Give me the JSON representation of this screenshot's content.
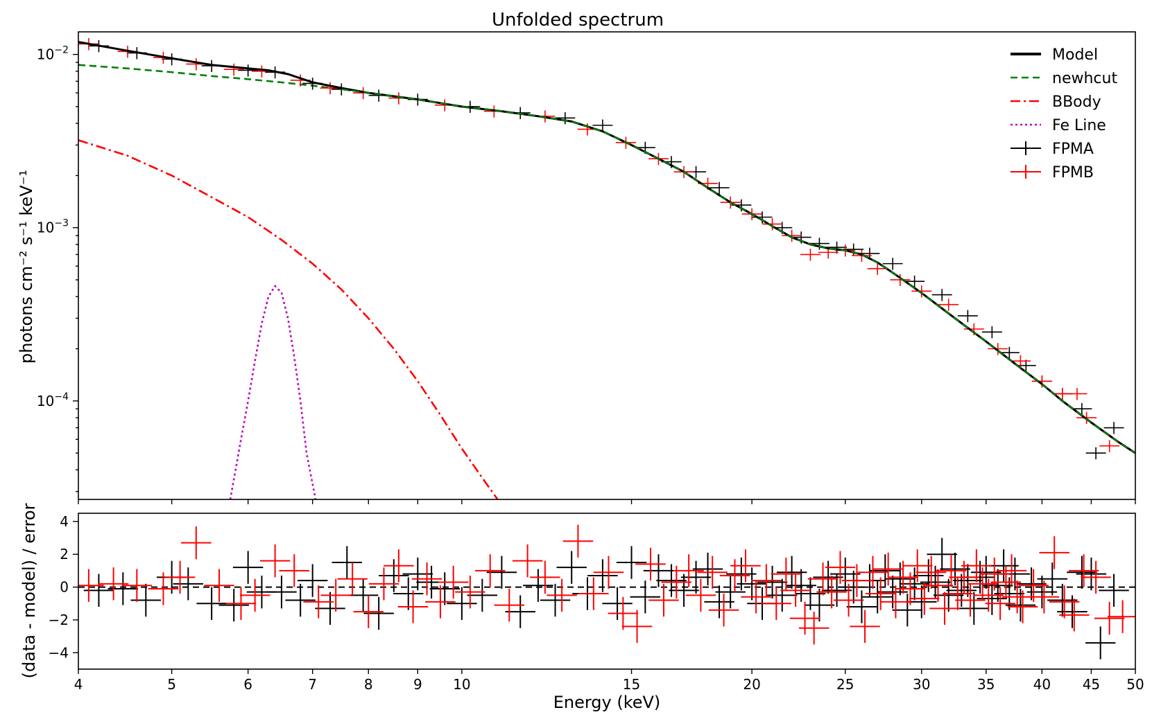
{
  "chart_data": [
    {
      "type": "line",
      "title": "Unfolded spectrum",
      "xlabel": "",
      "ylabel": "photons cm⁻² s⁻¹ keV⁻¹",
      "xscale": "log",
      "yscale": "log",
      "xlim": [
        4,
        50
      ],
      "ylim": [
        2.7e-05,
        0.0135
      ],
      "ytick_labels": [
        {
          "base": "10",
          "exp": "−2",
          "value": 0.01
        },
        {
          "base": "10",
          "exp": "−3",
          "value": 0.001
        },
        {
          "base": "10",
          "exp": "−4",
          "value": 0.0001
        }
      ],
      "legend": {
        "placement": "top-right",
        "entries": [
          {
            "label": "Model",
            "color": "#000000",
            "style": "solid"
          },
          {
            "label": "newhcut",
            "color": "#008000",
            "style": "dashed"
          },
          {
            "label": "BBody",
            "color": "#ff0000",
            "style": "dashdot"
          },
          {
            "label": "Fe Line",
            "color": "#bf00bf",
            "style": "dotted"
          },
          {
            "label": "FPMA",
            "color": "#000000",
            "style": "errorbar"
          },
          {
            "label": "FPMB",
            "color": "#ff0000",
            "style": "errorbar"
          }
        ]
      },
      "series": [
        {
          "name": "Model",
          "color": "#000000",
          "x": [
            4,
            4.5,
            5,
            5.5,
            6,
            6.3,
            6.6,
            7,
            7.5,
            8,
            9,
            10,
            11,
            12,
            13,
            14,
            15,
            16,
            17,
            18,
            19,
            20,
            21,
            22,
            23,
            24,
            25,
            26,
            27,
            28,
            30,
            32,
            35,
            38,
            40,
            42,
            45,
            48,
            50
          ],
          "y": [
            0.0118,
            0.0105,
            0.0095,
            0.0087,
            0.0083,
            0.0081,
            0.0077,
            0.0069,
            0.0064,
            0.006,
            0.0055,
            0.005,
            0.0047,
            0.0044,
            0.0041,
            0.0036,
            0.003,
            0.0025,
            0.0021,
            0.0017,
            0.0014,
            0.0012,
            0.00102,
            0.00088,
            0.0008,
            0.00076,
            0.00074,
            0.0007,
            0.00063,
            0.00055,
            0.00042,
            0.00032,
            0.00022,
            0.000155,
            0.000125,
            0.0001,
            7.5e-05,
            5.8e-05,
            5e-05
          ]
        },
        {
          "name": "newhcut",
          "color": "#008000",
          "x": [
            4,
            4.5,
            5,
            5.5,
            6,
            6.5,
            7,
            7.5,
            8,
            9,
            10,
            11,
            12,
            13,
            14,
            15,
            16,
            17,
            18,
            19,
            20,
            21,
            22,
            23,
            24,
            25,
            26,
            27,
            28,
            30,
            32,
            35,
            38,
            40,
            42,
            45,
            48,
            50
          ],
          "y": [
            0.0087,
            0.0083,
            0.0079,
            0.0075,
            0.0072,
            0.0069,
            0.0066,
            0.0063,
            0.006,
            0.0055,
            0.005,
            0.0047,
            0.0044,
            0.0041,
            0.0036,
            0.003,
            0.0025,
            0.0021,
            0.0017,
            0.0014,
            0.0012,
            0.00102,
            0.00088,
            0.0008,
            0.00076,
            0.00074,
            0.0007,
            0.00063,
            0.00055,
            0.00042,
            0.00032,
            0.00022,
            0.000155,
            0.000125,
            0.0001,
            7.5e-05,
            5.8e-05,
            5e-05
          ]
        },
        {
          "name": "BBody",
          "color": "#ff0000",
          "x": [
            4,
            4.5,
            5,
            5.5,
            6,
            6.5,
            7,
            7.5,
            8,
            8.5,
            9,
            9.5,
            10,
            10.5,
            11
          ],
          "y": [
            0.0032,
            0.0026,
            0.002,
            0.0015,
            0.00115,
            0.00085,
            0.00062,
            0.00044,
            0.0003,
            0.0002,
            0.00013,
            8.3e-05,
            5.3e-05,
            3.6e-05,
            2.5e-05
          ]
        },
        {
          "name": "Fe Line",
          "color": "#bf00bf",
          "x": [
            5.75,
            5.9,
            6.0,
            6.1,
            6.2,
            6.3,
            6.4,
            6.5,
            6.6,
            6.7,
            6.8,
            6.9,
            7.05
          ],
          "y": [
            2.7e-05,
            6e-05,
            0.0001,
            0.00017,
            0.00028,
            0.0004,
            0.00046,
            0.00042,
            0.0003,
            0.00018,
            0.0001,
            5e-05,
            2.7e-05
          ]
        },
        {
          "name": "FPMA",
          "color": "#000000",
          "x": [
            4.2,
            4.6,
            5.0,
            5.5,
            6.0,
            6.4,
            7.0,
            7.5,
            8.2,
            9.0,
            10.2,
            11.5,
            12.8,
            14.0,
            15.5,
            16.5,
            17.5,
            18.5,
            19.5,
            20.5,
            21.5,
            22.5,
            23.5,
            24.5,
            25.5,
            26.5,
            28.0,
            29.5,
            31.5,
            33.5,
            35.5,
            37.0,
            38.5,
            40.0,
            42.0,
            44.0,
            45.5,
            47.5
          ],
          "y": [
            0.0112,
            0.0102,
            0.0094,
            0.0086,
            0.0081,
            0.0079,
            0.0068,
            0.0063,
            0.0058,
            0.0055,
            0.005,
            0.0046,
            0.0043,
            0.0039,
            0.0029,
            0.0024,
            0.0021,
            0.0017,
            0.00135,
            0.00115,
            0.001,
            0.00088,
            0.00081,
            0.00077,
            0.00075,
            0.00071,
            0.00062,
            0.00049,
            0.00041,
            0.00031,
            0.00025,
            0.00019,
            0.00016,
            0.00013,
            0.00011,
            9e-05,
            5e-05,
            7e-05
          ]
        },
        {
          "name": "FPMB",
          "color": "#ff0000",
          "x": [
            4.1,
            4.5,
            4.9,
            5.3,
            5.8,
            6.2,
            6.8,
            7.3,
            7.9,
            8.6,
            9.6,
            10.8,
            12.2,
            13.5,
            14.8,
            16.0,
            17.0,
            18.0,
            19.0,
            20.0,
            21.0,
            22.0,
            23.0,
            24.0,
            25.0,
            26.0,
            27.0,
            28.5,
            30.0,
            32.0,
            34.0,
            36.0,
            38.0,
            40.0,
            42.0,
            43.5,
            44.5,
            47.0
          ],
          "y": [
            0.0115,
            0.0104,
            0.0096,
            0.0088,
            0.0082,
            0.008,
            0.0071,
            0.0064,
            0.006,
            0.0056,
            0.0051,
            0.0047,
            0.0044,
            0.0037,
            0.0031,
            0.0025,
            0.0021,
            0.0018,
            0.0014,
            0.0012,
            0.00105,
            0.0009,
            0.0007,
            0.00072,
            0.00074,
            0.00069,
            0.00058,
            0.0005,
            0.00043,
            0.00036,
            0.00026,
            0.0002,
            0.00017,
            0.00013,
            0.00011,
            0.00011,
            8e-05,
            5.5e-05
          ]
        }
      ]
    },
    {
      "type": "scatter",
      "title": "",
      "xlabel": "Energy (keV)",
      "ylabel": "(data - model) / error",
      "xscale": "log",
      "xlim": [
        4,
        50
      ],
      "ylim": [
        -5.0,
        4.5
      ],
      "yticks": [
        4,
        2,
        0,
        -2,
        -4
      ],
      "ytick_labels": [
        "4",
        "2",
        "0",
        "−2",
        "−4"
      ],
      "xticks": [
        4,
        5,
        6,
        7,
        8,
        9,
        10,
        15,
        20,
        25,
        30,
        35,
        40,
        45,
        50
      ],
      "xtick_labels": [
        "4",
        "5",
        "6",
        "7",
        "8",
        "9",
        "10",
        "15",
        "20",
        "25",
        "30",
        "35",
        "40",
        "45",
        "50"
      ],
      "reference_line": 0,
      "series": [
        {
          "name": "FPMA",
          "color": "#000000",
          "x": [
            4.2,
            4.45,
            4.7,
            5.0,
            5.2,
            5.5,
            5.8,
            6.0,
            6.2,
            6.5,
            6.8,
            7.0,
            7.3,
            7.6,
            7.9,
            8.2,
            8.5,
            8.8,
            9.0,
            9.3,
            9.6,
            10.0,
            10.5,
            11.0,
            11.5,
            12.0,
            12.5,
            13.0,
            13.5,
            14.0,
            14.5,
            15.0,
            15.5,
            16.0,
            16.5,
            17.0,
            17.5,
            18.0,
            18.5,
            19.0,
            19.5,
            20.0,
            20.5,
            21.0,
            21.5,
            22.0,
            22.5,
            23.0,
            23.5,
            24.0,
            24.5,
            25.0,
            25.5,
            26.0,
            26.5,
            27.0,
            27.5,
            28.0,
            28.5,
            29.0,
            29.5,
            30.0,
            30.5,
            31.0,
            31.5,
            32.0,
            32.5,
            33.0,
            33.5,
            34.0,
            34.5,
            35.0,
            35.5,
            36.0,
            36.5,
            37.0,
            37.5,
            38.0,
            39.0,
            40.0,
            41.0,
            42.0,
            43.0,
            44.0,
            45.0,
            46.0,
            47.5
          ],
          "y": [
            -0.2,
            -0.1,
            -0.8,
            0.6,
            0.2,
            -1.0,
            -1.1,
            1.2,
            -0.3,
            -0.3,
            -0.8,
            0.4,
            -1.3,
            1.5,
            -0.5,
            -1.6,
            0.7,
            -0.4,
            0.8,
            0.3,
            -0.1,
            -1.0,
            -0.5,
            0.9,
            -1.5,
            0.1,
            -0.8,
            1.2,
            -0.4,
            0.7,
            -1.0,
            1.5,
            -0.6,
            1.0,
            0.4,
            -0.2,
            0.6,
            1.1,
            -0.9,
            -0.3,
            0.8,
            0.2,
            -1.0,
            0.3,
            -0.5,
            0.9,
            0.1,
            -0.4,
            -1.1,
            0.6,
            -0.2,
            0.8,
            0.0,
            -1.2,
            0.4,
            -0.6,
            1.0,
            -0.3,
            0.5,
            -1.4,
            0.2,
            -0.9,
            0.7,
            0.3,
            2.0,
            -0.5,
            1.1,
            -0.2,
            0.4,
            -1.3,
            0.6,
            0.9,
            -0.7,
            0.1,
            1.3,
            -0.4,
            0.8,
            -1.1,
            0.2,
            -0.3,
            0.5,
            -0.8,
            -1.5,
            0.9,
            0.8,
            -3.4,
            -0.2
          ]
        },
        {
          "name": "FPMB",
          "color": "#ff0000",
          "x": [
            4.1,
            4.35,
            4.6,
            4.9,
            5.1,
            5.3,
            5.6,
            5.9,
            6.1,
            6.4,
            6.7,
            7.1,
            7.4,
            7.7,
            8.0,
            8.3,
            8.6,
            8.9,
            9.2,
            9.5,
            9.8,
            10.2,
            10.7,
            11.2,
            11.7,
            12.2,
            12.7,
            13.2,
            13.7,
            14.2,
            14.7,
            15.2,
            15.7,
            16.2,
            16.7,
            17.2,
            17.7,
            18.2,
            18.7,
            19.2,
            19.7,
            20.2,
            20.7,
            21.2,
            21.7,
            22.2,
            22.7,
            23.2,
            23.7,
            24.2,
            24.7,
            25.2,
            25.7,
            26.2,
            26.7,
            27.2,
            27.7,
            28.2,
            28.7,
            29.2,
            29.7,
            30.2,
            30.7,
            31.2,
            31.7,
            32.2,
            32.7,
            33.2,
            33.7,
            34.2,
            34.7,
            35.2,
            35.7,
            36.2,
            36.7,
            37.2,
            37.7,
            38.2,
            39.2,
            40.2,
            41.2,
            42.2,
            43.2,
            44.2,
            45.5,
            47.0,
            48.5
          ],
          "y": [
            0.1,
            0.2,
            0.1,
            -0.1,
            0.6,
            2.7,
            0.1,
            -1.0,
            -0.5,
            1.6,
            1.0,
            -0.9,
            -0.5,
            0.5,
            -1.5,
            0.2,
            1.3,
            -1.2,
            0.5,
            -0.9,
            0.3,
            -0.3,
            1.0,
            -1.1,
            1.6,
            0.6,
            -0.5,
            2.8,
            -0.4,
            0.9,
            -1.6,
            -2.4,
            1.4,
            -0.8,
            0.3,
            1.0,
            -0.5,
            0.9,
            -1.4,
            0.7,
            1.3,
            -0.6,
            0.4,
            -1.0,
            0.8,
            -0.2,
            -1.9,
            -2.5,
            0.5,
            -0.3,
            1.2,
            -0.8,
            0.4,
            -2.4,
            0.9,
            -0.4,
            1.1,
            -0.9,
            0.6,
            -0.1,
            1.3,
            -0.7,
            0.9,
            0.1,
            -1.3,
            1.0,
            -0.4,
            0.6,
            -0.8,
            1.3,
            0.2,
            -0.5,
            0.8,
            -1.0,
            0.3,
            1.0,
            -0.6,
            -1.2,
            0.1,
            -0.6,
            2.1,
            -0.9,
            -1.7,
            1.0,
            0.6,
            -1.9,
            -1.8
          ]
        }
      ]
    }
  ]
}
